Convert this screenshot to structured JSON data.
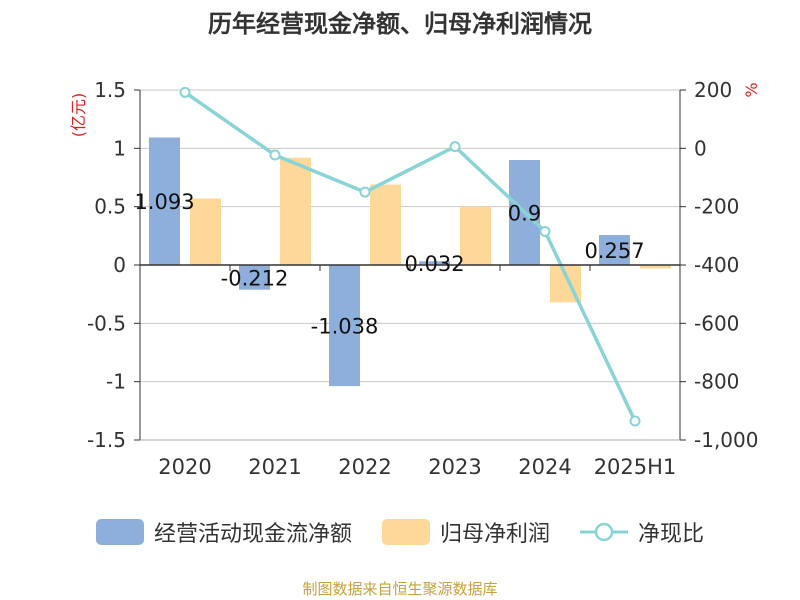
{
  "chart_data": {
    "type": "bar",
    "title": "历年经营现金净额、归母净利润情况",
    "categories": [
      "2020",
      "2021",
      "2022",
      "2023",
      "2024",
      "2025H1"
    ],
    "series": [
      {
        "name": "经营活动现金流净额",
        "axis": "left",
        "type": "bar",
        "color": "#8eaedc",
        "values": [
          1.093,
          -0.212,
          -1.038,
          0.032,
          0.9,
          0.257
        ],
        "data_labels": [
          "1.093",
          "-0.212",
          "-1.038",
          "0.032",
          "0.9",
          "0.257"
        ]
      },
      {
        "name": "归母净利润",
        "axis": "left",
        "type": "bar",
        "color": "#fdd899",
        "values": [
          0.57,
          0.92,
          0.69,
          0.5,
          -0.32,
          -0.03
        ]
      },
      {
        "name": "净现比",
        "axis": "right",
        "type": "line",
        "color": "#88d4d6",
        "values": [
          192,
          -23,
          -150,
          6,
          -285,
          -935
        ]
      }
    ],
    "left_axis": {
      "label": "(亿元)",
      "ylim": [
        -1.5,
        1.5
      ],
      "ticks": [
        1.5,
        1,
        0.5,
        0,
        -0.5,
        -1,
        -1.5
      ],
      "tick_labels": [
        "1.5",
        "1",
        "0.5",
        "0",
        "-0.5",
        "-1",
        "-1.5"
      ]
    },
    "right_axis": {
      "label": "%",
      "ylim": [
        -1000,
        200
      ],
      "ticks": [
        200,
        0,
        -200,
        -400,
        -600,
        -800,
        -1000
      ],
      "tick_labels": [
        "200",
        "0",
        "-200",
        "-400",
        "-600",
        "-800",
        "-1,000"
      ]
    },
    "grid": true,
    "legend": "bottom"
  },
  "legend": {
    "items": [
      "经营活动现金流净额",
      "归母净利润",
      "净现比"
    ]
  },
  "source": "制图数据来自恒生聚源数据库"
}
